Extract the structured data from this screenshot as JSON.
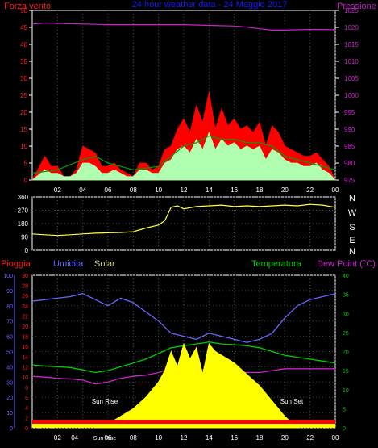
{
  "header": {
    "wind_label": "Forza vento",
    "title": "24 hour weather data - 24 Maggio 2017",
    "pressure_label": "Pressione"
  },
  "bottom_labels": {
    "rain": "Pioggia",
    "humidity": "Umidita",
    "solar": "Solar",
    "temperature": "Temperatura",
    "dewpoint": "Dew Point (°C)"
  },
  "compass": [
    "N",
    "W",
    "S",
    "E",
    "N"
  ],
  "colors": {
    "wind_gust": "#ff0000",
    "wind_avg": "#b0ffb0",
    "wind_ma": "#00a000",
    "pressure": "#cc22cc",
    "direction": "#ffff44",
    "humidity": "#6666ff",
    "temperature": "#00cc00",
    "dewpoint": "#cc22cc",
    "solar": "#ffff00",
    "rain": "#ff0000",
    "title": "#1a1aff",
    "axis_left_red": "#ff2020",
    "axis_pressure": "#cc22cc",
    "axis_temp": "#00cc00",
    "axis_hum": "#6666ff"
  },
  "chart_data": [
    {
      "type": "line",
      "title": "24 hour weather data - 24 Maggio 2017",
      "x_ticks": [
        "02",
        "04",
        "06",
        "08",
        "10",
        "12",
        "14",
        "16",
        "18",
        "20",
        "22",
        "00"
      ],
      "ylabel_left": "Forza vento",
      "ylim_left": [
        0,
        50
      ],
      "y_ticks_left": [
        "0",
        "5",
        "10",
        "15",
        "20",
        "25",
        "30",
        "35",
        "40",
        "45",
        "50"
      ],
      "ylabel_right": "Pressione",
      "ylim_right": [
        975,
        1025
      ],
      "y_ticks_right": [
        "975",
        "980",
        "985",
        "990",
        "995",
        "1000",
        "1005",
        "1010",
        "1015",
        "1020",
        "1025"
      ],
      "series": [
        {
          "name": "Forza vento",
          "key": "wind_gust",
          "axis": "left",
          "x": [
            0,
            1,
            1.5,
            2,
            2.5,
            3,
            3.5,
            4,
            4.5,
            5,
            5.5,
            6,
            6.5,
            7,
            7.5,
            8,
            8.5,
            9,
            9.5,
            10,
            10.5,
            11,
            11.5,
            12,
            12.5,
            13,
            13.5,
            14,
            14.5,
            15,
            15.5,
            16,
            16.5,
            17,
            17.5,
            18,
            18.5,
            19,
            19.5,
            20,
            20.5,
            21,
            21.5,
            22,
            22.5,
            23,
            23.5,
            24
          ],
          "values": [
            0,
            7,
            4,
            4,
            1,
            1,
            3,
            10,
            9,
            8,
            4,
            4,
            5,
            3,
            2,
            1,
            5,
            5,
            3,
            4,
            9,
            10,
            15,
            18,
            14,
            22,
            17,
            26,
            15,
            21,
            16,
            18,
            15,
            16,
            14,
            17,
            10,
            16,
            14,
            10,
            9,
            8,
            7,
            7,
            8,
            6,
            4,
            0
          ]
        },
        {
          "name": "",
          "key": "wind_avg",
          "axis": "left",
          "x": [
            0,
            1,
            1.5,
            2,
            2.5,
            3,
            3.5,
            4,
            4.5,
            5,
            5.5,
            6,
            6.5,
            7,
            7.5,
            8,
            8.5,
            9,
            9.5,
            10,
            10.5,
            11,
            11.5,
            12,
            12.5,
            13,
            13.5,
            14,
            14.5,
            15,
            15.5,
            16,
            16.5,
            17,
            17.5,
            18,
            18.5,
            19,
            19.5,
            20,
            20.5,
            21,
            21.5,
            22,
            22.5,
            23,
            23.5,
            24
          ],
          "values": [
            0,
            3,
            2,
            2,
            1,
            1,
            2,
            5,
            5,
            4,
            2,
            2,
            3,
            2,
            1,
            1,
            3,
            3,
            2,
            2,
            5,
            6,
            9,
            10,
            8,
            12,
            9,
            14,
            9,
            12,
            10,
            11,
            9,
            10,
            9,
            10,
            6,
            9,
            8,
            6,
            5,
            5,
            4,
            4,
            5,
            3,
            2,
            0
          ]
        },
        {
          "name": "",
          "key": "wind_ma",
          "axis": "left",
          "x": [
            0,
            2,
            4,
            5,
            6,
            8,
            10,
            11,
            12,
            13,
            14,
            15,
            16,
            17,
            18,
            19,
            20,
            21,
            22,
            23,
            24
          ],
          "values": [
            2,
            3,
            6,
            7,
            5,
            3,
            4,
            7,
            10,
            11,
            13,
            12,
            12,
            11,
            11,
            10,
            7,
            6,
            5,
            4,
            3
          ]
        },
        {
          "name": "Pressione",
          "key": "pressure",
          "axis": "right",
          "x": [
            0,
            1,
            2,
            4,
            6,
            8,
            10,
            12,
            14,
            16,
            17,
            18,
            19,
            20,
            22,
            24
          ],
          "values": [
            1021,
            1021.3,
            1021.2,
            1021,
            1020.8,
            1020.8,
            1020.8,
            1020.8,
            1020.6,
            1020.4,
            1020.1,
            1019.6,
            1019.2,
            1019.2,
            1019.4,
            1019.3
          ]
        }
      ]
    },
    {
      "type": "line",
      "title": "",
      "x_ticks": [
        "02",
        "04",
        "06",
        "08",
        "10",
        "12",
        "14",
        "16",
        "18",
        "20",
        "22",
        "00"
      ],
      "ylim": [
        0,
        360
      ],
      "y_ticks": [
        "0",
        "90",
        "180",
        "270",
        "360"
      ],
      "series": [
        {
          "name": "",
          "key": "direction",
          "x": [
            0,
            1,
            2,
            3,
            4,
            5,
            6,
            7,
            8,
            9,
            10,
            10.5,
            11,
            11.5,
            12,
            13,
            14,
            15,
            16,
            17,
            18,
            19,
            20,
            21,
            22,
            23,
            24
          ],
          "values": [
            110,
            105,
            100,
            105,
            110,
            115,
            118,
            120,
            125,
            150,
            170,
            200,
            290,
            300,
            280,
            295,
            300,
            305,
            295,
            300,
            295,
            300,
            305,
            300,
            310,
            305,
            290
          ]
        }
      ]
    },
    {
      "type": "line",
      "title": "",
      "x_ticks": [
        "02",
        "04",
        "06",
        "08",
        "10",
        "12",
        "14",
        "16",
        "18",
        "20",
        "22",
        "00"
      ],
      "annotations": [
        "Sun Rise",
        "Sun Set",
        "Sun Rise"
      ],
      "ylabel_rain": "Pioggia",
      "ylim_rain": [
        0,
        30
      ],
      "y_ticks_rain": [
        "0",
        "2",
        "4",
        "6",
        "8",
        "10",
        "12",
        "14",
        "16",
        "18",
        "20",
        "22",
        "24",
        "26",
        "28",
        "30"
      ],
      "ylabel_humidity": "Umidita",
      "ylim_humidity": [
        0,
        100
      ],
      "y_ticks_humidity": [
        "0",
        "10",
        "20",
        "30",
        "40",
        "50",
        "60",
        "70",
        "80",
        "90",
        "100"
      ],
      "ylabel_temp": "Temperatura",
      "ylim_temp": [
        0,
        40
      ],
      "y_ticks_temp": [
        "0",
        "5",
        "10",
        "15",
        "20",
        "25",
        "30",
        "35",
        "40"
      ],
      "series": [
        {
          "name": "Umidita",
          "key": "humidity",
          "axis": "humidity",
          "x": [
            0,
            1,
            2,
            3,
            4,
            5,
            6,
            7,
            8,
            9,
            10,
            11,
            12,
            13,
            14,
            15,
            16,
            17,
            18,
            19,
            20,
            21,
            22,
            23,
            24
          ],
          "values": [
            83,
            84,
            85,
            86,
            88,
            84,
            80,
            85,
            82,
            76,
            70,
            62,
            60,
            58,
            62,
            60,
            58,
            56,
            58,
            62,
            72,
            80,
            84,
            86,
            88
          ]
        },
        {
          "name": "Temperatura",
          "key": "temperature",
          "axis": "temp",
          "x": [
            0,
            1,
            2,
            3,
            4,
            5,
            6,
            7,
            8,
            9,
            10,
            11,
            12,
            13,
            14,
            15,
            16,
            17,
            18,
            19,
            20,
            21,
            22,
            23,
            24
          ],
          "values": [
            16.5,
            16.2,
            16,
            15.8,
            15.2,
            14.5,
            15,
            16,
            17,
            18,
            19.5,
            21,
            21.5,
            22,
            22.5,
            22,
            21.8,
            21.5,
            21,
            20,
            19,
            18.5,
            18,
            17.5,
            17
          ]
        },
        {
          "name": "Dew Point",
          "key": "dewpoint",
          "axis": "temp",
          "x": [
            0,
            1,
            2,
            3,
            4,
            5,
            6,
            7,
            8,
            9,
            10,
            11,
            12,
            13,
            14,
            15,
            16,
            17,
            18,
            19,
            20,
            21,
            22,
            23,
            24
          ],
          "values": [
            13.5,
            13.3,
            13,
            12.8,
            12.5,
            11.5,
            12,
            13,
            13.5,
            13.8,
            14.5,
            15.5,
            15.5,
            15,
            15.5,
            15.5,
            15,
            14.5,
            14.5,
            15,
            15.5,
            15.5,
            15.5,
            15.5,
            15.5
          ]
        },
        {
          "name": "Solar",
          "key": "solar",
          "axis": "temp",
          "x": [
            5,
            6,
            7,
            8,
            9,
            10,
            10.5,
            11,
            11.5,
            12,
            12.5,
            13,
            13.5,
            14,
            14.5,
            15,
            16,
            17,
            18,
            19,
            20,
            21
          ],
          "values": [
            0,
            1,
            3,
            5,
            8,
            12,
            15,
            20,
            16,
            22,
            18,
            21,
            14,
            22,
            20,
            19,
            17,
            14,
            11,
            7,
            3,
            0
          ]
        },
        {
          "name": "Pioggia",
          "key": "rain",
          "axis": "rain",
          "x": [
            0,
            24
          ],
          "values": [
            0,
            0
          ]
        }
      ]
    }
  ]
}
